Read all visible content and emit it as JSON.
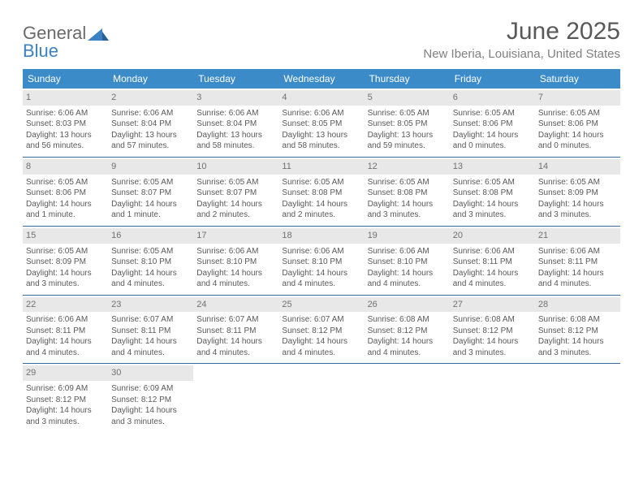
{
  "logo": {
    "word1": "General",
    "word2": "Blue"
  },
  "title": "June 2025",
  "location": "New Iberia, Louisiana, United States",
  "colors": {
    "header_bg": "#3b8bc9",
    "header_text": "#ffffff",
    "rule": "#3b6ea0",
    "daynum_bg": "#e8e8e8",
    "body_text": "#595959",
    "title_text": "#595959",
    "location_text": "#808080",
    "logo_gray": "#6a6a6a",
    "logo_blue": "#3b82c4",
    "page_bg": "#ffffff"
  },
  "typography": {
    "title_fontsize": 30,
    "location_fontsize": 15,
    "dow_fontsize": 12,
    "daynum_fontsize": 11,
    "cell_fontsize": 10,
    "logo_fontsize": 22
  },
  "layout": {
    "columns": 7,
    "rows": 5
  },
  "days_of_week": [
    "Sunday",
    "Monday",
    "Tuesday",
    "Wednesday",
    "Thursday",
    "Friday",
    "Saturday"
  ],
  "days": [
    {
      "n": "1",
      "sunrise": "6:06 AM",
      "sunset": "8:03 PM",
      "daylight": "13 hours and 56 minutes."
    },
    {
      "n": "2",
      "sunrise": "6:06 AM",
      "sunset": "8:04 PM",
      "daylight": "13 hours and 57 minutes."
    },
    {
      "n": "3",
      "sunrise": "6:06 AM",
      "sunset": "8:04 PM",
      "daylight": "13 hours and 58 minutes."
    },
    {
      "n": "4",
      "sunrise": "6:06 AM",
      "sunset": "8:05 PM",
      "daylight": "13 hours and 58 minutes."
    },
    {
      "n": "5",
      "sunrise": "6:05 AM",
      "sunset": "8:05 PM",
      "daylight": "13 hours and 59 minutes."
    },
    {
      "n": "6",
      "sunrise": "6:05 AM",
      "sunset": "8:06 PM",
      "daylight": "14 hours and 0 minutes."
    },
    {
      "n": "7",
      "sunrise": "6:05 AM",
      "sunset": "8:06 PM",
      "daylight": "14 hours and 0 minutes."
    },
    {
      "n": "8",
      "sunrise": "6:05 AM",
      "sunset": "8:06 PM",
      "daylight": "14 hours and 1 minute."
    },
    {
      "n": "9",
      "sunrise": "6:05 AM",
      "sunset": "8:07 PM",
      "daylight": "14 hours and 1 minute."
    },
    {
      "n": "10",
      "sunrise": "6:05 AM",
      "sunset": "8:07 PM",
      "daylight": "14 hours and 2 minutes."
    },
    {
      "n": "11",
      "sunrise": "6:05 AM",
      "sunset": "8:08 PM",
      "daylight": "14 hours and 2 minutes."
    },
    {
      "n": "12",
      "sunrise": "6:05 AM",
      "sunset": "8:08 PM",
      "daylight": "14 hours and 3 minutes."
    },
    {
      "n": "13",
      "sunrise": "6:05 AM",
      "sunset": "8:08 PM",
      "daylight": "14 hours and 3 minutes."
    },
    {
      "n": "14",
      "sunrise": "6:05 AM",
      "sunset": "8:09 PM",
      "daylight": "14 hours and 3 minutes."
    },
    {
      "n": "15",
      "sunrise": "6:05 AM",
      "sunset": "8:09 PM",
      "daylight": "14 hours and 3 minutes."
    },
    {
      "n": "16",
      "sunrise": "6:05 AM",
      "sunset": "8:10 PM",
      "daylight": "14 hours and 4 minutes."
    },
    {
      "n": "17",
      "sunrise": "6:06 AM",
      "sunset": "8:10 PM",
      "daylight": "14 hours and 4 minutes."
    },
    {
      "n": "18",
      "sunrise": "6:06 AM",
      "sunset": "8:10 PM",
      "daylight": "14 hours and 4 minutes."
    },
    {
      "n": "19",
      "sunrise": "6:06 AM",
      "sunset": "8:10 PM",
      "daylight": "14 hours and 4 minutes."
    },
    {
      "n": "20",
      "sunrise": "6:06 AM",
      "sunset": "8:11 PM",
      "daylight": "14 hours and 4 minutes."
    },
    {
      "n": "21",
      "sunrise": "6:06 AM",
      "sunset": "8:11 PM",
      "daylight": "14 hours and 4 minutes."
    },
    {
      "n": "22",
      "sunrise": "6:06 AM",
      "sunset": "8:11 PM",
      "daylight": "14 hours and 4 minutes."
    },
    {
      "n": "23",
      "sunrise": "6:07 AM",
      "sunset": "8:11 PM",
      "daylight": "14 hours and 4 minutes."
    },
    {
      "n": "24",
      "sunrise": "6:07 AM",
      "sunset": "8:11 PM",
      "daylight": "14 hours and 4 minutes."
    },
    {
      "n": "25",
      "sunrise": "6:07 AM",
      "sunset": "8:12 PM",
      "daylight": "14 hours and 4 minutes."
    },
    {
      "n": "26",
      "sunrise": "6:08 AM",
      "sunset": "8:12 PM",
      "daylight": "14 hours and 4 minutes."
    },
    {
      "n": "27",
      "sunrise": "6:08 AM",
      "sunset": "8:12 PM",
      "daylight": "14 hours and 3 minutes."
    },
    {
      "n": "28",
      "sunrise": "6:08 AM",
      "sunset": "8:12 PM",
      "daylight": "14 hours and 3 minutes."
    },
    {
      "n": "29",
      "sunrise": "6:09 AM",
      "sunset": "8:12 PM",
      "daylight": "14 hours and 3 minutes."
    },
    {
      "n": "30",
      "sunrise": "6:09 AM",
      "sunset": "8:12 PM",
      "daylight": "14 hours and 3 minutes."
    }
  ],
  "labels": {
    "sunrise": "Sunrise:",
    "sunset": "Sunset:",
    "daylight": "Daylight:"
  }
}
